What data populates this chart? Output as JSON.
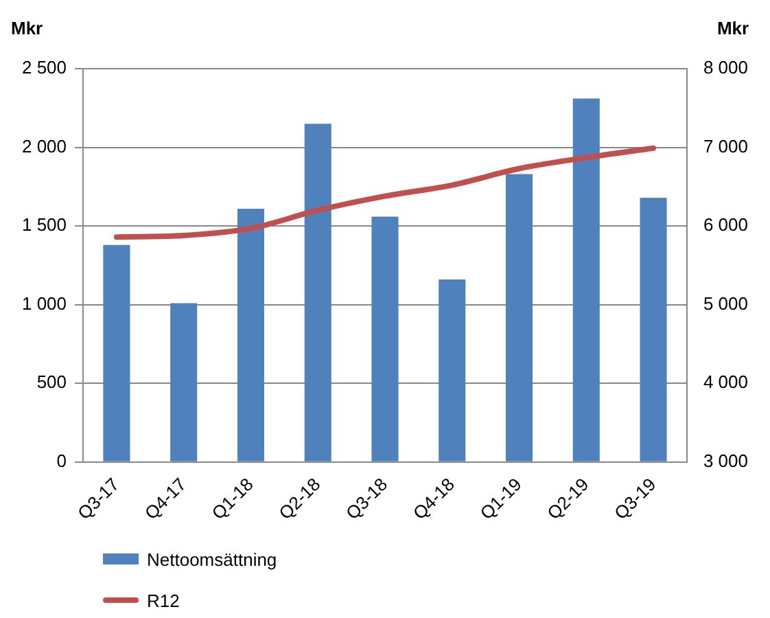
{
  "chart_data": {
    "type": "bar",
    "ylabel": "Mkr",
    "y2label": "Mkr",
    "categories": [
      "Q3-17",
      "Q4-17",
      "Q1-18",
      "Q2-18",
      "Q3-18",
      "Q4-18",
      "Q1-19",
      "Q2-19",
      "Q3-19"
    ],
    "series": [
      {
        "name": "Nettoomsättning",
        "color": "#4f81bd",
        "values": [
          1380,
          1010,
          1610,
          2150,
          1560,
          1160,
          1830,
          2310,
          1680
        ]
      },
      {
        "name": "R12",
        "type": "line",
        "axis": "y2",
        "color": "#c0504d",
        "values": [
          5860,
          5880,
          5970,
          6200,
          6380,
          6520,
          6730,
          6870,
          6990
        ]
      }
    ],
    "ylim": [
      0,
      2500
    ],
    "yticks": [
      0,
      500,
      {
        "value": 1000,
        "label": "1 000"
      },
      {
        "value": 1500,
        "label": "1 500"
      },
      {
        "value": 2000,
        "label": "2 000"
      },
      {
        "value": 2500,
        "label": "2 500"
      }
    ],
    "y2lim": [
      3000,
      8000
    ],
    "y2ticks": [
      {
        "value": 3000,
        "label": "3 000"
      },
      {
        "value": 4000,
        "label": "4 000"
      },
      {
        "value": 5000,
        "label": "5 000"
      },
      {
        "value": 6000,
        "label": "6 000"
      },
      {
        "value": 7000,
        "label": "7 000"
      },
      {
        "value": 8000,
        "label": "8 000"
      }
    ],
    "grid": "y",
    "legend": "bottom left",
    "marker": "none"
  }
}
